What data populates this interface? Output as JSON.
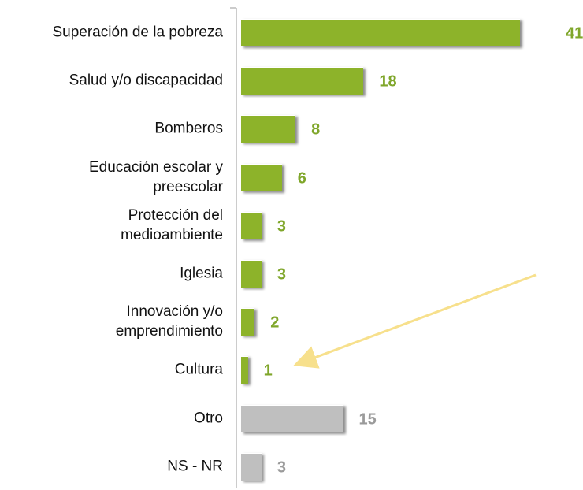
{
  "chart_data": {
    "type": "bar",
    "orientation": "horizontal",
    "categories": [
      "Superación de la pobreza",
      "Salud y/o discapacidad",
      "Bomberos",
      "Educación escolar y preescolar",
      "Protección del medioambiente",
      "Iglesia",
      "Innovación y/o emprendimiento",
      "Cultura",
      "Otro",
      "NS - NR"
    ],
    "values": [
      41,
      18,
      8,
      6,
      3,
      3,
      2,
      1,
      15,
      3
    ],
    "colors": [
      "#8db32a",
      "#8db32a",
      "#8db32a",
      "#8db32a",
      "#8db32a",
      "#8db32a",
      "#8db32a",
      "#8db32a",
      "#bfbfbf",
      "#bfbfbf"
    ],
    "label_colors": [
      "#7fa62a",
      "#7fa62a",
      "#7fa62a",
      "#7fa62a",
      "#7fa62a",
      "#7fa62a",
      "#7fa62a",
      "#7fa62a",
      "#9a9a9a",
      "#9a9a9a"
    ]
  }
}
